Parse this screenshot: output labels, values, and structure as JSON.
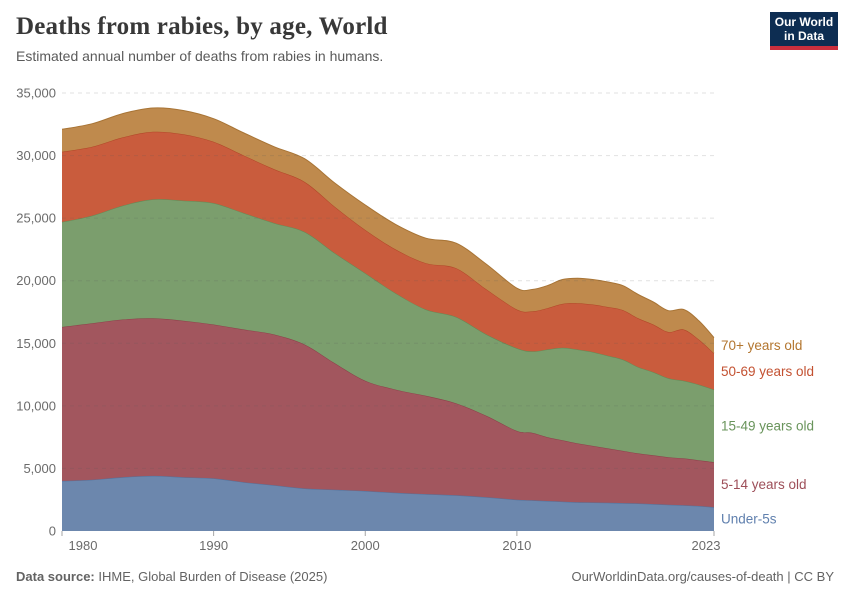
{
  "header": {
    "title": "Deaths from rabies, by age, World",
    "subtitle": "Estimated annual number of deaths from rabies in humans.",
    "logo": {
      "line1": "Our World",
      "line2": "in Data",
      "bg": "#0d2d52",
      "bar": "#ca2f3d"
    }
  },
  "footer": {
    "source_bold": "Data source:",
    "source_rest": " IHME, Global Burden of Disease (2025)",
    "link": "OurWorldinData.org/causes-of-death",
    "license": " | CC BY"
  },
  "chart_data": {
    "type": "area",
    "stacked": true,
    "title": "Deaths from rabies, by age, World",
    "ylabel": "",
    "xlabel": "",
    "ylim": [
      0,
      35000
    ],
    "y_ticks": [
      0,
      5000,
      10000,
      15000,
      20000,
      25000,
      30000,
      35000
    ],
    "x_ticks": [
      1980,
      1990,
      2000,
      2010,
      2023
    ],
    "grid": "dashed-horizontal",
    "grid_color": "#dcdcdc",
    "axis_text_color": "#6b6b6b",
    "tick_mark_color": "#a5a5a5",
    "legend_position": "right-of-plot",
    "x": [
      1980,
      1982,
      1984,
      1986,
      1988,
      1990,
      1992,
      1994,
      1996,
      1998,
      2000,
      2002,
      2004,
      2006,
      2008,
      2010,
      2011,
      2012,
      2013,
      2014,
      2015,
      2016,
      2017,
      2018,
      2019,
      2020,
      2021,
      2022,
      2023
    ],
    "series": [
      {
        "name": "Under-5s",
        "fill": "#6c87ad",
        "line": "#53719b",
        "label_color": "#6080ae",
        "values": [
          4000,
          4100,
          4300,
          4400,
          4300,
          4200,
          3900,
          3650,
          3400,
          3300,
          3200,
          3050,
          2950,
          2850,
          2700,
          2500,
          2450,
          2400,
          2350,
          2300,
          2280,
          2250,
          2230,
          2200,
          2150,
          2100,
          2050,
          2000,
          1900
        ]
      },
      {
        "name": "5-14 years old",
        "fill": "#a2565e",
        "line": "#8c4049",
        "label_color": "#9d4e58",
        "values": [
          12300,
          12500,
          12600,
          12600,
          12500,
          12300,
          12200,
          12050,
          11500,
          10100,
          8800,
          8250,
          7850,
          7350,
          6500,
          5500,
          5400,
          5100,
          4900,
          4700,
          4520,
          4350,
          4170,
          4000,
          3900,
          3800,
          3750,
          3650,
          3600
        ]
      },
      {
        "name": "15-49 years old",
        "fill": "#7b9e6d",
        "line": "#648a55",
        "label_color": "#69945b",
        "values": [
          8400,
          8600,
          9100,
          9500,
          9600,
          9700,
          9300,
          8900,
          9000,
          8800,
          8600,
          7700,
          6900,
          6900,
          6500,
          6600,
          6500,
          7000,
          7400,
          7500,
          7500,
          7400,
          7300,
          6900,
          6650,
          6300,
          6200,
          6050,
          5800
        ]
      },
      {
        "name": "50-69 years old",
        "fill": "#c95c3d",
        "line": "#b14627",
        "label_color": "#c35131",
        "values": [
          5600,
          5500,
          5450,
          5400,
          5300,
          4900,
          4600,
          4300,
          4000,
          3700,
          3450,
          3500,
          3700,
          3900,
          3600,
          3100,
          3200,
          3300,
          3500,
          3700,
          3800,
          3900,
          3950,
          3900,
          3800,
          3700,
          4100,
          3600,
          2900
        ]
      },
      {
        "name": "70+ years old",
        "fill": "#bf8a4d",
        "line": "#a87435",
        "label_color": "#b3762f",
        "values": [
          1800,
          1850,
          1900,
          1900,
          1900,
          1850,
          1800,
          1800,
          1850,
          1900,
          2000,
          2000,
          2000,
          2000,
          2000,
          1700,
          1750,
          1800,
          1950,
          2000,
          2000,
          2000,
          1950,
          1900,
          1800,
          1700,
          1600,
          1500,
          1250
        ]
      }
    ]
  }
}
